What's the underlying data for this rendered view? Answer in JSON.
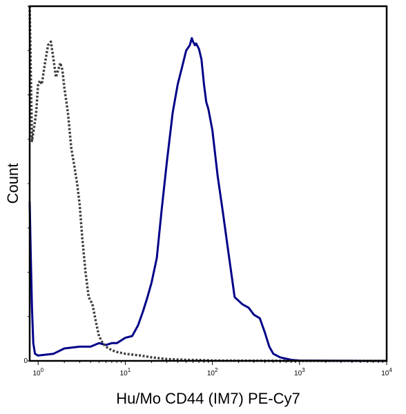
{
  "chart_data": {
    "type": "line",
    "xlabel": "Hu/Mo CD44 (IM7) PE-Cy7",
    "ylabel": "Count",
    "x_scale": "log",
    "xlim": [
      0.8,
      10000
    ],
    "ylim": [
      0,
      100
    ],
    "x_ticks": [
      {
        "value": 1,
        "base": "10",
        "exp": "0"
      },
      {
        "value": 10,
        "base": "10",
        "exp": "1"
      },
      {
        "value": 100,
        "base": "10",
        "exp": "2"
      },
      {
        "value": 1000,
        "base": "10",
        "exp": "3"
      },
      {
        "value": 10000,
        "base": "10",
        "exp": "4"
      }
    ],
    "y_ticks": [
      {
        "value": 0,
        "label": "0"
      }
    ],
    "grid": false,
    "legend": "none",
    "series": [
      {
        "color": "#000088",
        "dash": "solid",
        "x": [
          0.8,
          0.82,
          0.85,
          0.88,
          0.92,
          1.0,
          1.5,
          2.0,
          3.0,
          4.0,
          5.0,
          6.0,
          7.0,
          8.0,
          10.0,
          12.0,
          14.0,
          16.0,
          18.0,
          20.0,
          23.0,
          26.0,
          30.0,
          35.0,
          40.0,
          45.0,
          50.0,
          55.0,
          58.0,
          60.0,
          63.0,
          65.0,
          70.0,
          75.0,
          80.0,
          85.0,
          90.0,
          100.0,
          115.0,
          130.0,
          150.0,
          180.0,
          220.0,
          260.0,
          300.0,
          350.0,
          400.0,
          450.0,
          500.0,
          600.0,
          800.0,
          1000.0,
          2000.0,
          5000.0,
          10000.0
        ],
        "y": [
          45,
          31,
          15,
          5,
          2,
          1.5,
          2,
          3.5,
          4,
          4,
          5,
          4.5,
          5,
          5,
          6.5,
          7,
          10,
          14,
          18,
          22,
          29,
          42,
          56,
          70,
          78,
          83,
          87.5,
          89,
          91,
          90,
          89,
          89.5,
          88,
          85,
          78,
          73,
          71,
          65,
          52,
          43,
          32,
          18,
          16,
          15,
          13,
          12,
          8,
          4,
          2,
          1,
          0.3,
          0.1,
          0.05,
          0,
          0
        ]
      },
      {
        "color": "#404040",
        "dash": "dotted",
        "x": [
          0.8,
          0.85,
          0.9,
          0.95,
          1.0,
          1.05,
          1.1,
          1.2,
          1.3,
          1.4,
          1.5,
          1.6,
          1.7,
          1.8,
          1.9,
          2.0,
          2.2,
          2.4,
          2.6,
          2.8,
          3.0,
          3.2,
          3.5,
          3.8,
          4.2,
          4.6,
          5.0,
          5.5,
          6.0,
          7.0,
          8.0,
          10.0,
          15.0,
          20.0,
          30.0,
          50.0,
          80.0,
          100.0,
          200.0,
          1000.0,
          10000.0
        ],
        "y": [
          100,
          62,
          66,
          70,
          78,
          79,
          78,
          84,
          89,
          90,
          85,
          80,
          82,
          84,
          82,
          77,
          70,
          60,
          55,
          50,
          44,
          35,
          25,
          18,
          16,
          11,
          7,
          5,
          4,
          3,
          2.5,
          2,
          1.5,
          1,
          0.5,
          0.3,
          0.2,
          0.1,
          0.05,
          0,
          0
        ]
      }
    ]
  }
}
